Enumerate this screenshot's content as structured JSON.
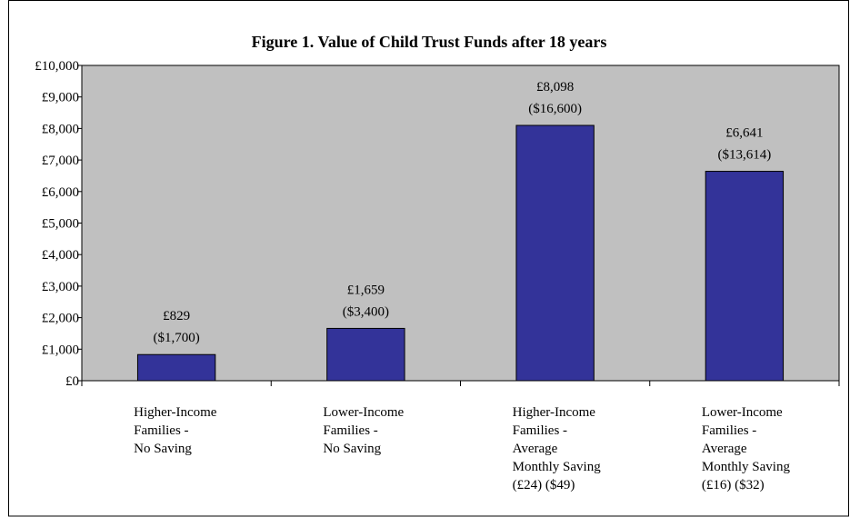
{
  "chart_data": {
    "type": "bar",
    "title": "Figure 1. Value of Child Trust Funds after 18 years",
    "xlabel": "",
    "ylabel": "",
    "ylim": [
      0,
      10000
    ],
    "yticks": [
      0,
      1000,
      2000,
      3000,
      4000,
      5000,
      6000,
      7000,
      8000,
      9000,
      10000
    ],
    "ytick_labels": [
      "£0",
      "£1,000",
      "£2,000",
      "£3,000",
      "£4,000",
      "£5,000",
      "£6,000",
      "£7,000",
      "£8,000",
      "£9,000",
      "£10,000"
    ],
    "categories": [
      [
        "Higher-Income",
        "Families -",
        "No Saving"
      ],
      [
        "Lower-Income",
        "Families -",
        "No Saving"
      ],
      [
        "Higher-Income",
        "Families -",
        "Average",
        "Monthly Saving",
        "(£24) ($49)"
      ],
      [
        "Lower-Income",
        "Families -",
        "Average",
        "Monthly Saving",
        "(£16) ($32)"
      ]
    ],
    "values": [
      829,
      1659,
      8098,
      6641
    ],
    "data_labels": [
      [
        "£829",
        "($1,700)"
      ],
      [
        "£1,659",
        "($3,400)"
      ],
      [
        "£8,098",
        "($16,600)"
      ],
      [
        "£6,641",
        "($13,614)"
      ]
    ],
    "grid": false,
    "legend": "none",
    "colors": {
      "bar": "#333399",
      "plot_background": "#c0c0c0",
      "page_background": "#ffffff",
      "axis": "#000000"
    }
  }
}
